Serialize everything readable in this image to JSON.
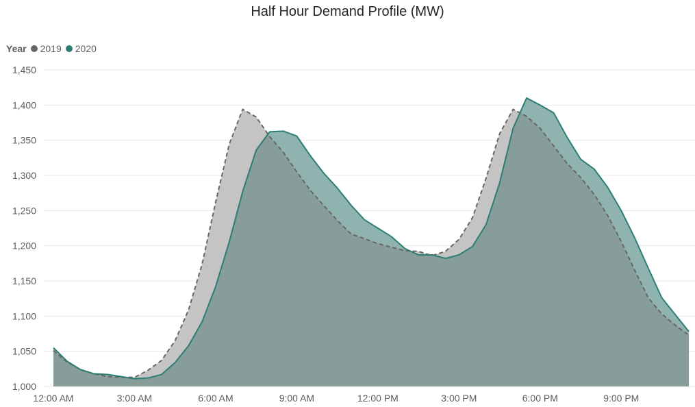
{
  "chart_data": {
    "type": "area",
    "title": "Half Hour Demand Profile (MW)",
    "xlabel": "",
    "ylabel": "",
    "legend": {
      "title": "Year",
      "placement": "top-left"
    },
    "x_tick_labels": [
      "12:00 AM",
      "3:00 AM",
      "6:00 AM",
      "9:00 AM",
      "12:00 PM",
      "3:00 PM",
      "6:00 PM",
      "9:00 PM"
    ],
    "x_tick_hours": [
      0,
      3,
      6,
      9,
      12,
      15,
      18,
      21
    ],
    "y_tick_labels": [
      "1,000",
      "1,050",
      "1,100",
      "1,150",
      "1,200",
      "1,250",
      "1,300",
      "1,350",
      "1,400",
      "1,450"
    ],
    "ylim": [
      1000,
      1450
    ],
    "xlim": [
      0,
      23.5
    ],
    "grid": true,
    "x_hours": [
      0,
      0.5,
      1,
      1.5,
      2,
      2.5,
      3,
      3.5,
      4,
      4.5,
      5,
      5.5,
      6,
      6.5,
      7,
      7.5,
      8,
      8.5,
      9,
      9.5,
      10,
      10.5,
      11,
      11.5,
      12,
      12.5,
      13,
      13.5,
      14,
      14.5,
      15,
      15.5,
      16,
      16.5,
      17,
      17.5,
      18,
      18.5,
      19,
      19.5,
      20,
      20.5,
      21,
      21.5,
      22,
      22.5,
      23,
      23.5
    ],
    "series": [
      {
        "name": "2019",
        "color": "#666666",
        "fill": "#c4c4c4",
        "line_style": "dashed",
        "values": [
          1051,
          1035,
          1024,
          1018,
          1014,
          1013,
          1013,
          1023,
          1037,
          1065,
          1109,
          1174,
          1262,
          1344,
          1394,
          1383,
          1355,
          1333,
          1305,
          1279,
          1257,
          1236,
          1217,
          1210,
          1203,
          1198,
          1193,
          1192,
          1186,
          1192,
          1209,
          1240,
          1296,
          1359,
          1394,
          1384,
          1367,
          1342,
          1317,
          1297,
          1273,
          1243,
          1206,
          1165,
          1126,
          1103,
          1087,
          1073
        ]
      },
      {
        "name": "2020",
        "color": "#2e7d73",
        "fill": "#8fb4b0",
        "line_style": "solid",
        "values": [
          1055,
          1036,
          1024,
          1018,
          1017,
          1014,
          1011,
          1012,
          1017,
          1034,
          1058,
          1092,
          1142,
          1205,
          1277,
          1336,
          1362,
          1363,
          1356,
          1328,
          1303,
          1282,
          1258,
          1237,
          1225,
          1213,
          1196,
          1187,
          1187,
          1182,
          1187,
          1199,
          1230,
          1289,
          1367,
          1410,
          1400,
          1389,
          1354,
          1323,
          1309,
          1283,
          1250,
          1211,
          1168,
          1126,
          1102,
          1078
        ]
      }
    ]
  }
}
